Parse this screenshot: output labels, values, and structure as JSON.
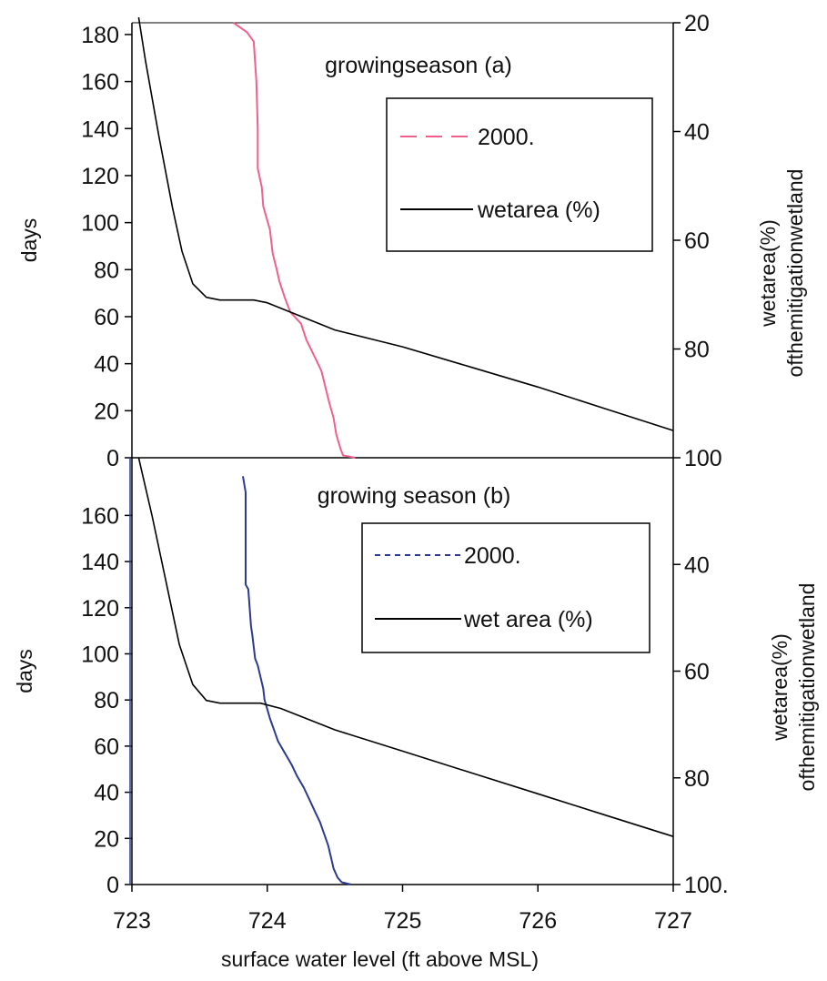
{
  "chart_data": [
    {
      "type": "line",
      "panel": "a",
      "title": "growingseason (a)",
      "ylabel": "days",
      "y2label_line1": "wetarea(%)",
      "y2label_line2": "ofthemitigationwetland",
      "xlim": [
        723,
        727
      ],
      "ylim": [
        0,
        185
      ],
      "y2lim": [
        20,
        100
      ],
      "y2_inverted": true,
      "yticks": [
        "0",
        "20",
        "40",
        "60",
        "80",
        "100",
        "120",
        "140",
        "160",
        "180"
      ],
      "y2ticks": [
        "20",
        "40",
        "60",
        "80",
        "100"
      ],
      "legend": {
        "placement": "upper-right",
        "entries": [
          "2000.",
          "wetarea (%)"
        ]
      },
      "series": [
        {
          "name": "2000.",
          "axis": "left",
          "color": "#f0608a",
          "style": "dashed",
          "points": [
            [
              723.75,
              185
            ],
            [
              723.85,
              181
            ],
            [
              723.9,
              177
            ],
            [
              723.92,
              160
            ],
            [
              723.93,
              140
            ],
            [
              723.93,
              123
            ],
            [
              723.96,
              115
            ],
            [
              723.97,
              107
            ],
            [
              724.02,
              97
            ],
            [
              724.04,
              87
            ],
            [
              724.07,
              80
            ],
            [
              724.09,
              75
            ],
            [
              724.13,
              68
            ],
            [
              724.17,
              62
            ],
            [
              724.25,
              57
            ],
            [
              724.29,
              50
            ],
            [
              724.35,
              43
            ],
            [
              724.4,
              37
            ],
            [
              724.43,
              30
            ],
            [
              724.46,
              23
            ],
            [
              724.49,
              17
            ],
            [
              724.51,
              10
            ],
            [
              724.54,
              4
            ],
            [
              724.56,
              1
            ],
            [
              724.65,
              0
            ]
          ]
        },
        {
          "name": "wetarea (%)",
          "axis": "right",
          "color": "#000000",
          "style": "solid",
          "points": [
            [
              723.05,
              19
            ],
            [
              723.1,
              27
            ],
            [
              723.2,
              41
            ],
            [
              723.3,
              54
            ],
            [
              723.37,
              62
            ],
            [
              723.45,
              68
            ],
            [
              723.55,
              70.5
            ],
            [
              723.65,
              71
            ],
            [
              723.9,
              71
            ],
            [
              724.0,
              71.5
            ],
            [
              724.5,
              76.5
            ],
            [
              725,
              79.6
            ],
            [
              725.5,
              83.3
            ],
            [
              726,
              87
            ],
            [
              726.5,
              91
            ],
            [
              727,
              95
            ]
          ]
        }
      ]
    },
    {
      "type": "line",
      "panel": "b",
      "title": "growing   season   (b)",
      "xlabel": "surface  water  level  (ft  above  MSL)",
      "ylabel": "days",
      "y2label_line1": "wetarea(%)",
      "y2label_line2": "ofthemitigationwetland",
      "xlim": [
        723,
        727
      ],
      "ylim": [
        0,
        185
      ],
      "y2lim": [
        20,
        100
      ],
      "y2_inverted": true,
      "xticks": [
        "723",
        "724",
        "725",
        "726",
        "727"
      ],
      "yticks": [
        "0",
        "20",
        "40",
        "60",
        "80",
        "100",
        "120",
        "140",
        "160"
      ],
      "y2ticks": [
        "40",
        "60",
        "80",
        "100."
      ],
      "legend": {
        "placement": "upper-right",
        "entries": [
          "2000.",
          "wet   area  (%)"
        ]
      },
      "series": [
        {
          "name": "2000.",
          "axis": "left",
          "color": "#2b3a8f",
          "style": "dashed",
          "points": [
            [
              723.82,
              177
            ],
            [
              723.84,
              170
            ],
            [
              723.84,
              130
            ],
            [
              723.86,
              128
            ],
            [
              723.87,
              120
            ],
            [
              723.88,
              112
            ],
            [
              723.89,
              108
            ],
            [
              723.91,
              98
            ],
            [
              723.93,
              95
            ],
            [
              723.95,
              90
            ],
            [
              723.97,
              85
            ],
            [
              723.98,
              80
            ],
            [
              724.0,
              76
            ],
            [
              724.02,
              72
            ],
            [
              724.05,
              67
            ],
            [
              724.08,
              62
            ],
            [
              724.13,
              57
            ],
            [
              724.18,
              52
            ],
            [
              724.22,
              47
            ],
            [
              724.27,
              42
            ],
            [
              724.31,
              37
            ],
            [
              724.35,
              32
            ],
            [
              724.39,
              27
            ],
            [
              724.42,
              22
            ],
            [
              724.45,
              17
            ],
            [
              724.47,
              12
            ],
            [
              724.49,
              7
            ],
            [
              724.52,
              3
            ],
            [
              724.55,
              1
            ],
            [
              724.62,
              0
            ]
          ]
        },
        {
          "name": "wet   area  (%)",
          "axis": "right",
          "color": "#000000",
          "style": "solid",
          "points": [
            [
              723.05,
              20
            ],
            [
              723.15,
              31
            ],
            [
              723.25,
              43
            ],
            [
              723.35,
              55
            ],
            [
              723.45,
              62.5
            ],
            [
              723.55,
              65.5
            ],
            [
              723.65,
              66
            ],
            [
              723.95,
              66
            ],
            [
              724.1,
              67
            ],
            [
              724.5,
              71
            ],
            [
              725,
              75
            ],
            [
              725.5,
              79
            ],
            [
              726,
              83
            ],
            [
              726.5,
              87
            ],
            [
              727,
              91
            ]
          ]
        }
      ]
    }
  ]
}
